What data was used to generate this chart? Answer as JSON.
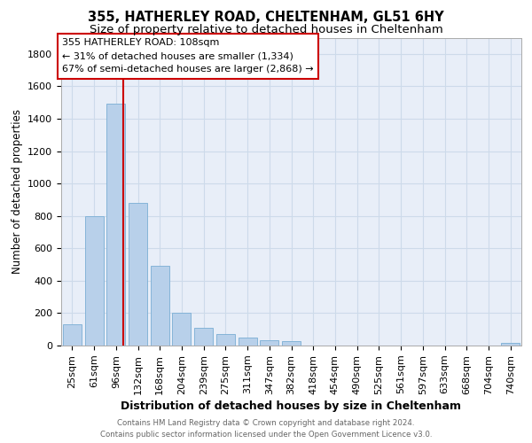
{
  "title1": "355, HATHERLEY ROAD, CHELTENHAM, GL51 6HY",
  "title2": "Size of property relative to detached houses in Cheltenham",
  "xlabel": "Distribution of detached houses by size in Cheltenham",
  "ylabel": "Number of detached properties",
  "categories": [
    "25sqm",
    "61sqm",
    "96sqm",
    "132sqm",
    "168sqm",
    "204sqm",
    "239sqm",
    "275sqm",
    "311sqm",
    "347sqm",
    "382sqm",
    "418sqm",
    "454sqm",
    "490sqm",
    "525sqm",
    "561sqm",
    "597sqm",
    "633sqm",
    "668sqm",
    "704sqm",
    "740sqm"
  ],
  "values": [
    130,
    800,
    1490,
    880,
    490,
    205,
    110,
    70,
    48,
    35,
    28,
    0,
    0,
    0,
    0,
    0,
    0,
    0,
    0,
    0,
    18
  ],
  "bar_color": "#b8d0ea",
  "bar_edgecolor": "#7aaed4",
  "grid_color": "#cddaea",
  "background_color": "#e8eef8",
  "annotation_text": "355 HATHERLEY ROAD: 108sqm\n← 31% of detached houses are smaller (1,334)\n67% of semi-detached houses are larger (2,868) →",
  "annotation_box_color": "#ffffff",
  "annotation_box_edgecolor": "#cc0000",
  "footer_line1": "Contains HM Land Registry data © Crown copyright and database right 2024.",
  "footer_line2": "Contains public sector information licensed under the Open Government Licence v3.0.",
  "ylim": [
    0,
    1900
  ],
  "yticks": [
    0,
    200,
    400,
    600,
    800,
    1000,
    1200,
    1400,
    1600,
    1800
  ],
  "title1_fontsize": 10.5,
  "title2_fontsize": 9.5,
  "xlabel_fontsize": 9,
  "ylabel_fontsize": 8.5,
  "tick_fontsize": 8,
  "ann_fontsize": 8
}
